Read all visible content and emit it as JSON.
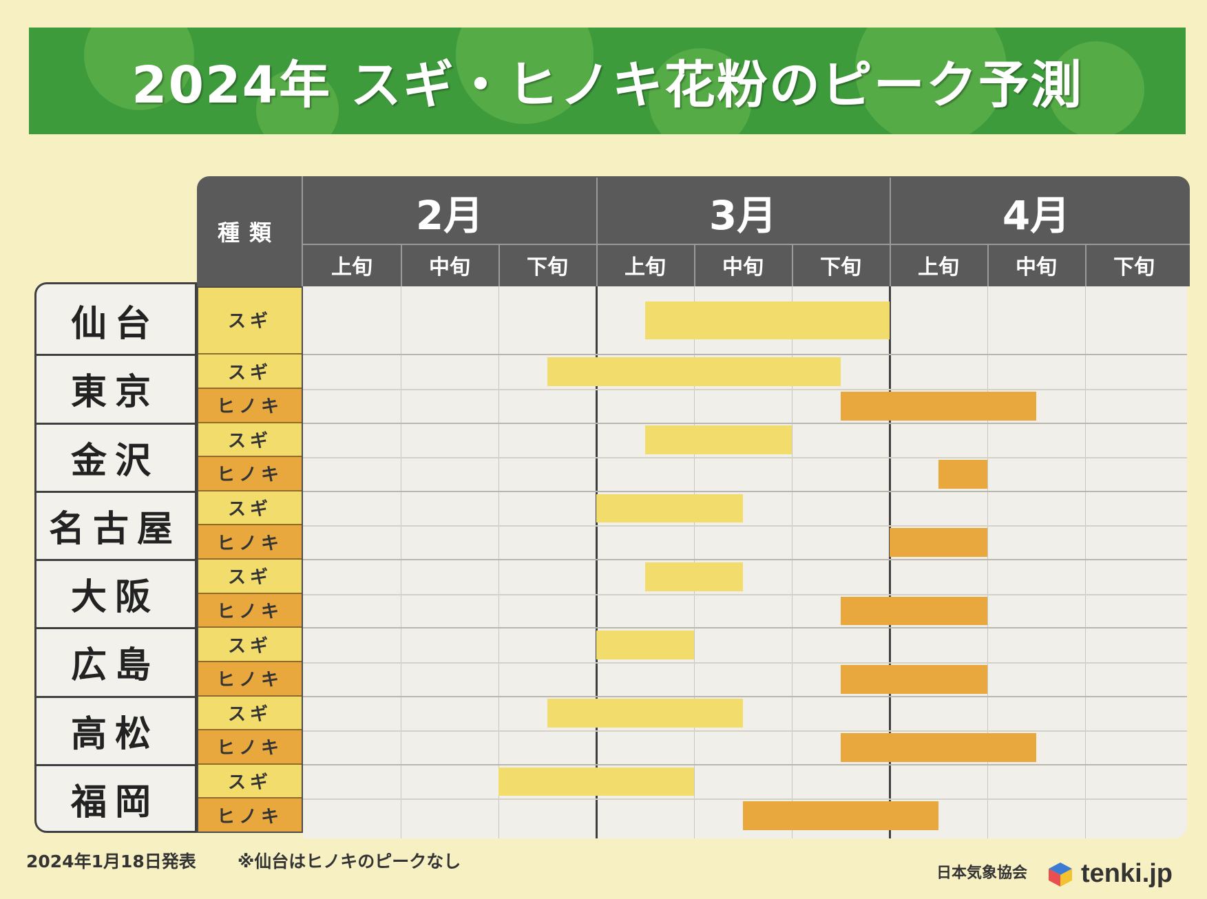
{
  "header": {
    "title": "2024年  スギ・ヒノキ花粉のピーク予測",
    "type_label": "種類"
  },
  "footer": {
    "date": "2024年1月18日発表",
    "note": "※仙台はヒノキのピークなし",
    "org": "日本気象協会",
    "brand": "tenki.jp"
  },
  "colors": {
    "sugi": "#f2dc6c",
    "hinoki": "#e8a83e",
    "banner": "#3e9b3c",
    "header": "#5a5a5a"
  },
  "icons": [
    "tenki-logo-icon"
  ],
  "chart_data": {
    "type": "table",
    "title": "2024年  スギ・ヒノキ花粉のピーク予測",
    "months": [
      "2月",
      "3月",
      "4月"
    ],
    "periods": [
      "上旬",
      "中旬",
      "下旬"
    ],
    "series": [
      {
        "name": "スギ",
        "color": "#f2dc6c"
      },
      {
        "name": "ヒノキ",
        "color": "#e8a83e"
      }
    ],
    "cities": [
      {
        "name": "仙台",
        "rows": [
          {
            "type": "スギ",
            "start": 3.5,
            "end": 6.0
          }
        ]
      },
      {
        "name": "東京",
        "rows": [
          {
            "type": "スギ",
            "start": 2.5,
            "end": 5.5
          },
          {
            "type": "ヒノキ",
            "start": 5.5,
            "end": 7.5
          }
        ]
      },
      {
        "name": "金沢",
        "rows": [
          {
            "type": "スギ",
            "start": 3.5,
            "end": 5.0
          },
          {
            "type": "ヒノキ",
            "start": 6.5,
            "end": 7.0
          }
        ]
      },
      {
        "name": "名古屋",
        "rows": [
          {
            "type": "スギ",
            "start": 3.0,
            "end": 4.5
          },
          {
            "type": "ヒノキ",
            "start": 6.0,
            "end": 7.0
          }
        ]
      },
      {
        "name": "大阪",
        "rows": [
          {
            "type": "スギ",
            "start": 3.5,
            "end": 4.5
          },
          {
            "type": "ヒノキ",
            "start": 5.5,
            "end": 7.0
          }
        ]
      },
      {
        "name": "広島",
        "rows": [
          {
            "type": "スギ",
            "start": 3.0,
            "end": 4.0
          },
          {
            "type": "ヒノキ",
            "start": 5.5,
            "end": 7.0
          }
        ]
      },
      {
        "name": "高松",
        "rows": [
          {
            "type": "スギ",
            "start": 2.5,
            "end": 4.5
          },
          {
            "type": "ヒノキ",
            "start": 5.5,
            "end": 7.5
          }
        ]
      },
      {
        "name": "福岡",
        "rows": [
          {
            "type": "スギ",
            "start": 2.0,
            "end": 4.0
          },
          {
            "type": "ヒノキ",
            "start": 4.5,
            "end": 6.5
          }
        ]
      }
    ]
  }
}
